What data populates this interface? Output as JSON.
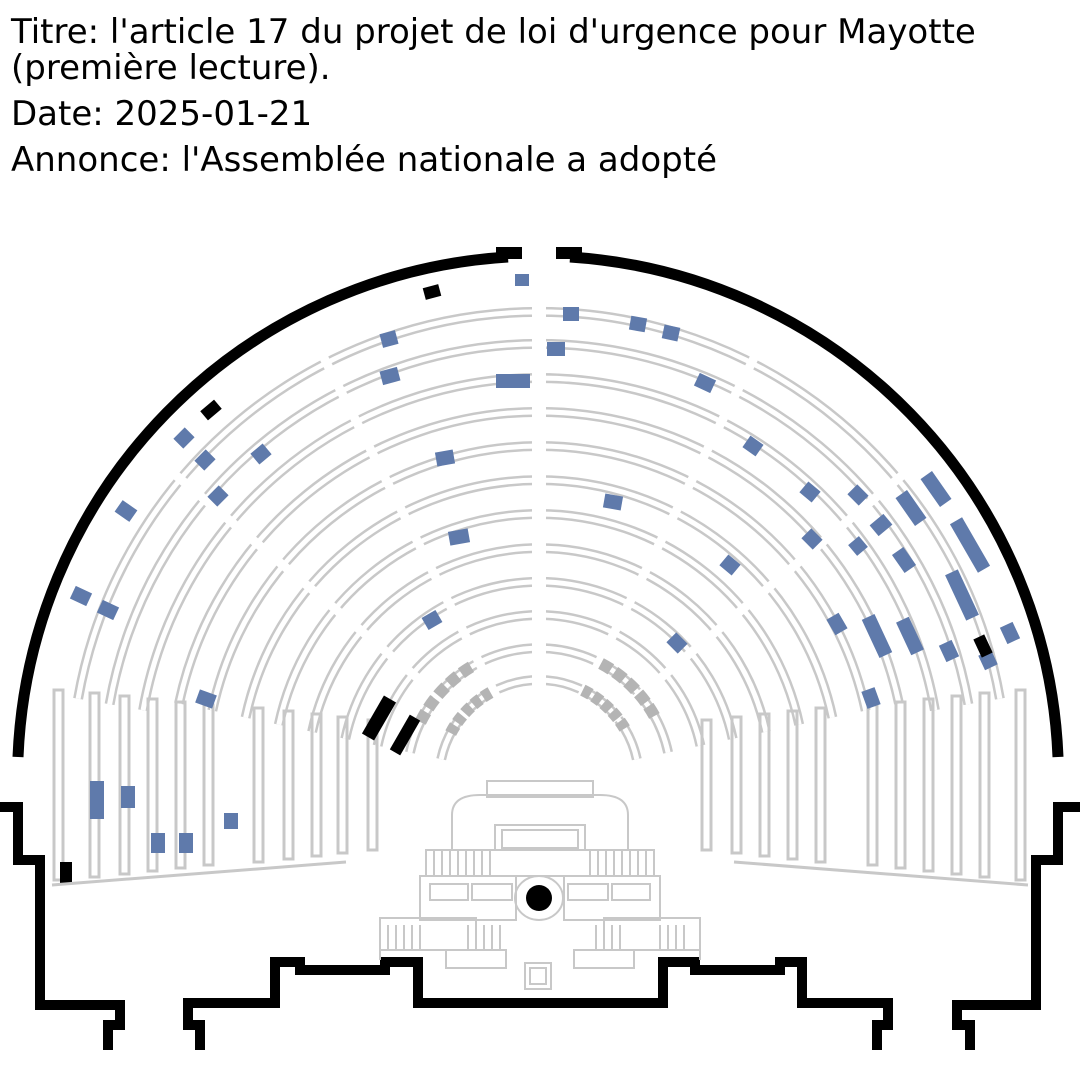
{
  "header": {
    "title": "Titre: l'article 17 du projet de loi d'urgence pour Mayotte (première lecture).",
    "date": "Date: 2025-01-21",
    "announcement": "Annonce: l'Assemblée nationale a adopté"
  },
  "colors": {
    "vote_for": "#5f7aab",
    "vote_other": "#000000",
    "seat_empty": "#c8c8c8",
    "government_bench": "#b4b4b4",
    "wall": "#000000"
  },
  "icons": {
    "president_seat": "filled-circle-icon"
  }
}
